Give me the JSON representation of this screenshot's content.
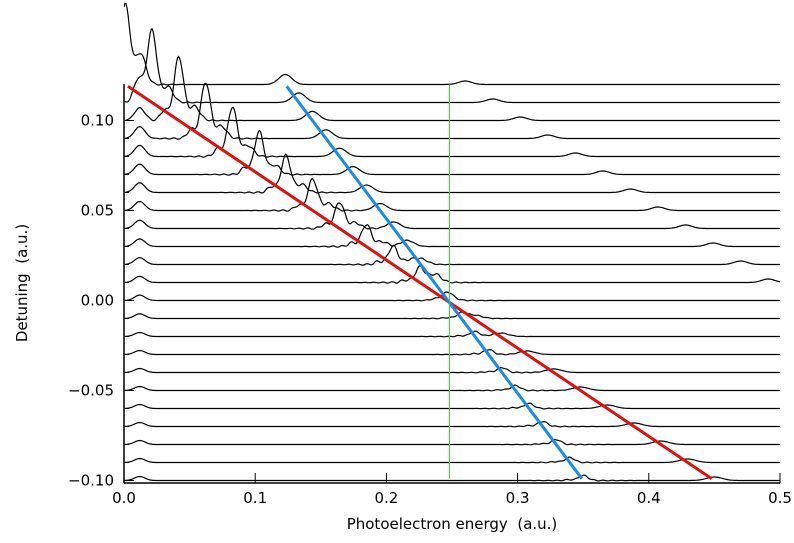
{
  "chart_data": {
    "type": "line",
    "title": "",
    "xlabel": "Photoelectron energy  (a.u.)",
    "ylabel": "Detuning  (a.u.)",
    "xlim": [
      0.0,
      0.5
    ],
    "ylim": [
      -0.1,
      0.12
    ],
    "xticks": [
      0.0,
      0.1,
      0.2,
      0.3,
      0.4,
      0.5
    ],
    "xtick_labels": [
      "0.0",
      "0.1",
      "0.2",
      "0.3",
      "0.4",
      "0.5"
    ],
    "yticks": [
      -0.1,
      -0.05,
      0.0,
      0.05,
      0.1
    ],
    "ytick_labels": [
      "−0.10",
      "−0.05",
      "0.00",
      "0.05",
      "0.10"
    ],
    "grid": false,
    "legend": "none",
    "waterfall_traces": {
      "baseline_detunings": [
        0.12,
        0.11,
        0.1,
        0.09,
        0.08,
        0.07,
        0.06,
        0.05,
        0.04,
        0.03,
        0.02,
        0.01,
        0.0,
        -0.01,
        -0.02,
        -0.03,
        -0.04,
        -0.05,
        -0.06,
        -0.07,
        -0.08,
        -0.09,
        -0.1
      ],
      "color": "#000000"
    },
    "series": [
      {
        "x": [
          0.003,
          0.448
        ],
        "y": [
          0.119,
          -0.099
        ],
        "color": "#e01010"
      },
      {
        "x": [
          0.124,
          0.349
        ],
        "y": [
          0.119,
          -0.099
        ],
        "color": "#1a8ce8"
      },
      {
        "x": [
          0.248,
          0.248
        ],
        "y": [
          0.12,
          -0.099
        ],
        "color": "#33cc33"
      }
    ]
  }
}
